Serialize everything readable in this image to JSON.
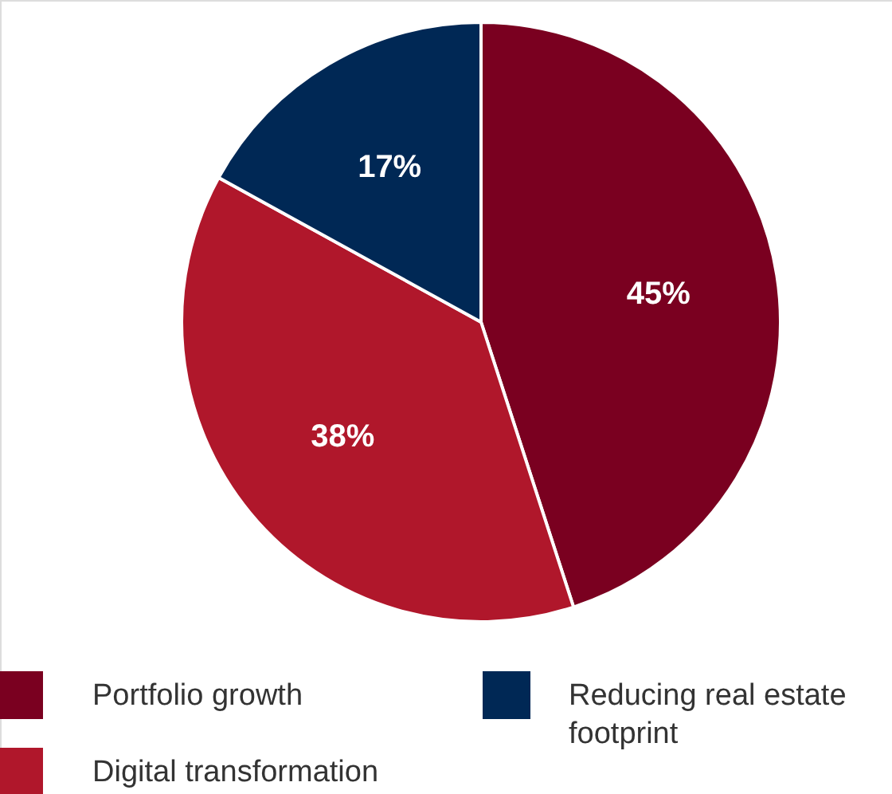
{
  "chart_data": {
    "type": "pie",
    "categories": [
      "Portfolio growth",
      "Digital transformation",
      "Reducing real estate footprint"
    ],
    "values": [
      45,
      38,
      17
    ],
    "colors": [
      "#7a0020",
      "#b0172b",
      "#002855"
    ],
    "value_labels": [
      "45%",
      "38%",
      "17%"
    ],
    "legend": "bottom"
  }
}
